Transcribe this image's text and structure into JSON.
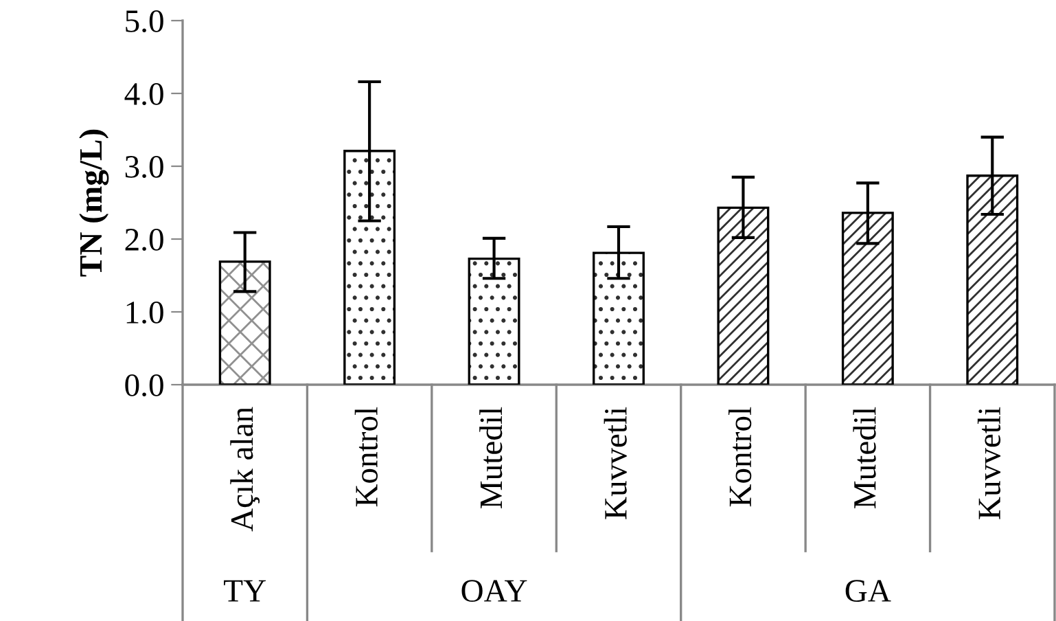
{
  "chart_data": {
    "type": "bar",
    "ylabel": "TN (mg/L)",
    "categories": [
      "Açık alan",
      "Kontrol",
      "Mutedil",
      "Kuvvetli",
      "Kontrol",
      "Mutedil",
      "Kuvvetli"
    ],
    "values": [
      1.69,
      3.21,
      1.73,
      1.81,
      2.43,
      2.36,
      2.87
    ],
    "errors": [
      [
        1.28,
        2.09
      ],
      [
        2.25,
        4.16
      ],
      [
        1.46,
        2.01
      ],
      [
        1.46,
        2.17
      ],
      [
        2.02,
        2.85
      ],
      [
        1.94,
        2.77
      ],
      [
        2.34,
        3.4
      ]
    ],
    "colors": [
      "#ffffff",
      "#ffffff",
      "#ffffff",
      "#ffffff",
      "#ffffff",
      "#ffffff",
      "#ffffff"
    ],
    "annotations": [
      "TY",
      "OAY",
      "GA"
    ],
    "ylim": [
      0,
      5
    ],
    "yticks": [
      {
        "value": 0,
        "label": "0.0"
      },
      {
        "value": 1,
        "label": "1.0"
      },
      {
        "value": 2,
        "label": "2.0"
      },
      {
        "value": 3,
        "label": "3.0"
      },
      {
        "value": 4,
        "label": "4.0"
      },
      {
        "value": 5,
        "label": "5.0"
      }
    ],
    "grid": false,
    "legend": false
  }
}
